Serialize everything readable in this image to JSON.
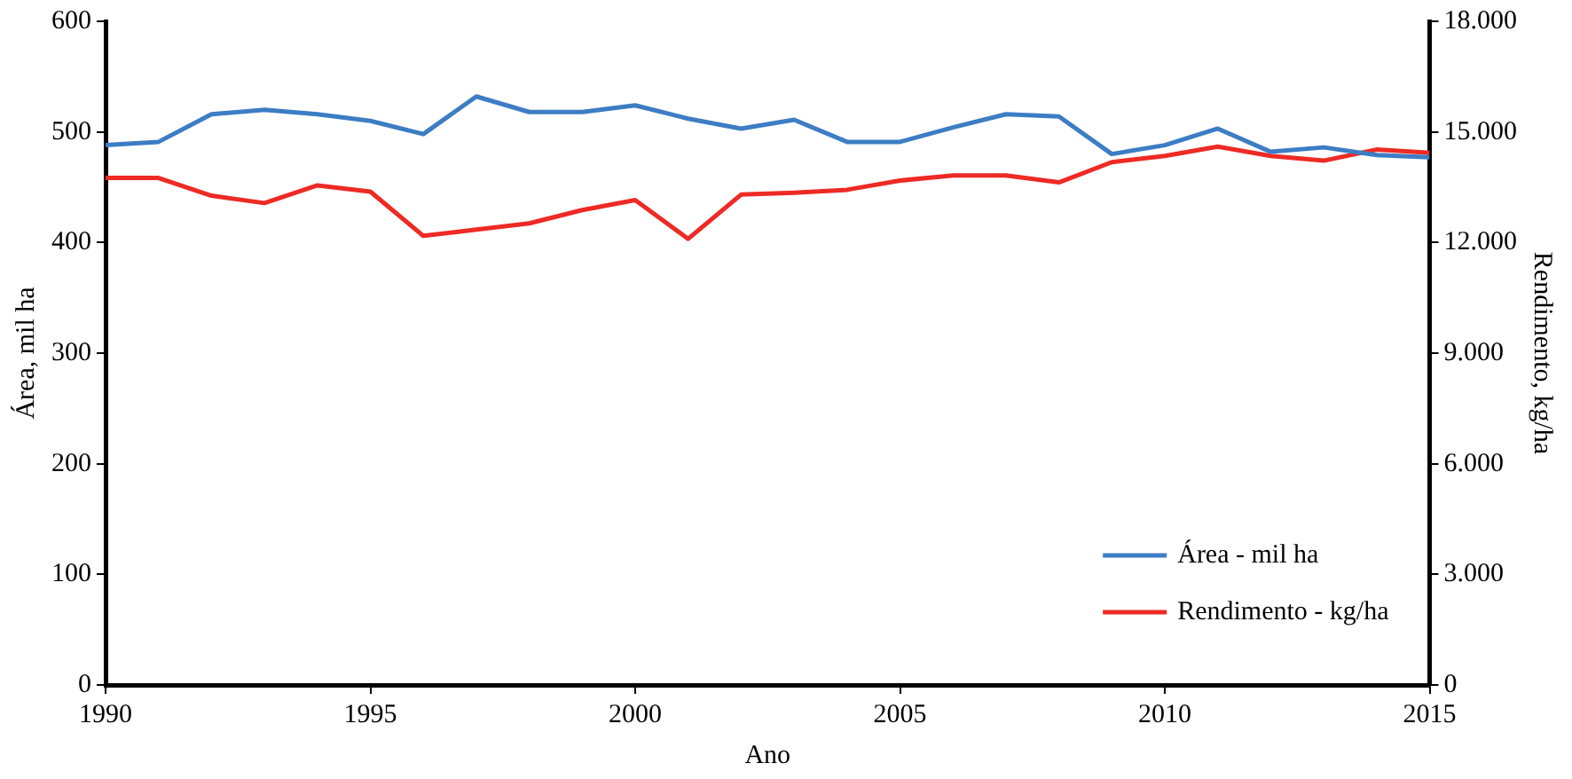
{
  "chart_data": {
    "type": "line",
    "xlabel": "Ano",
    "ylabel": "Área, mil ha",
    "y2label": "Rendimento, kg/ha",
    "x": [
      1990,
      1991,
      1992,
      1993,
      1994,
      1995,
      1996,
      1997,
      1998,
      1999,
      2000,
      2001,
      2002,
      2003,
      2004,
      2005,
      2006,
      2007,
      2008,
      2009,
      2010,
      2011,
      2012,
      2013,
      2014,
      2015
    ],
    "series": [
      {
        "name": "Área - mil ha",
        "color": "#3c7dc4",
        "values": [
          488,
          491,
          516,
          520,
          516,
          510,
          498,
          532,
          518,
          518,
          524,
          512,
          503,
          511,
          491,
          491,
          504,
          516,
          514,
          480,
          488,
          503,
          482,
          486,
          479,
          477
        ]
      },
      {
        "name": "Rendimento - kg/ha",
        "color": "#ee2a24",
        "axis": "y2",
        "values": [
          13750,
          13750,
          13270,
          13070,
          13550,
          13380,
          12180,
          12350,
          12520,
          12880,
          13150,
          12100,
          13300,
          13350,
          13430,
          13680,
          13820,
          13820,
          13630,
          14180,
          14350,
          14600,
          14350,
          14220,
          14520,
          14430
        ]
      }
    ],
    "xlim": [
      1990,
      2015
    ],
    "xticks": [
      1990,
      1995,
      2000,
      2005,
      2010,
      2015
    ],
    "ylim": [
      0,
      600
    ],
    "yticks": [
      0,
      100,
      200,
      300,
      400,
      500,
      600
    ],
    "y2lim": [
      0,
      18000
    ],
    "y2ticks": [
      {
        "value": 0,
        "label": "0"
      },
      {
        "value": 3000,
        "label": "3.000"
      },
      {
        "value": 6000,
        "label": "6.000"
      },
      {
        "value": 9000,
        "label": "9.000"
      },
      {
        "value": 12000,
        "label": "12.000"
      },
      {
        "value": 15000,
        "label": "15.000"
      },
      {
        "value": 18000,
        "label": "18.000"
      }
    ],
    "grid": false,
    "legend": "bottom right",
    "marker": "none",
    "line_style": "solid"
  }
}
